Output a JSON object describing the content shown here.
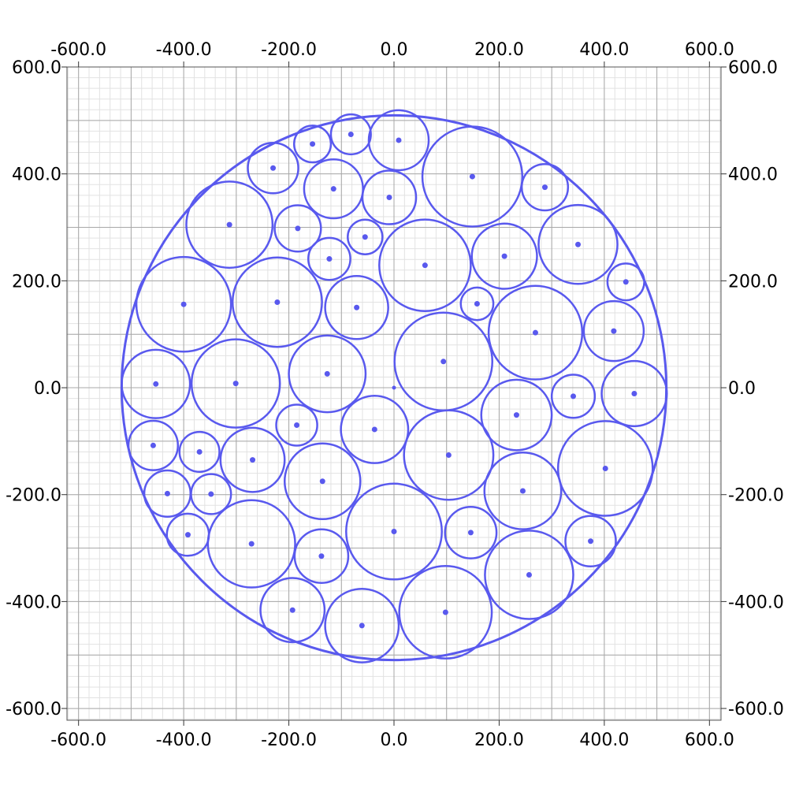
{
  "chart_data": {
    "type": "scatter",
    "title": "",
    "xlabel": "",
    "ylabel": "",
    "xlim": [
      -622,
      622
    ],
    "ylim": [
      -622,
      600
    ],
    "x_ticks": [
      -600,
      -400,
      -200,
      0,
      200,
      400,
      600
    ],
    "y_ticks": [
      600,
      400,
      200,
      0,
      -200,
      -400,
      -600
    ],
    "x_tick_labels": [
      "-600.0",
      "-400.0",
      "-200.0",
      "0.0",
      "200.0",
      "400.0",
      "600.0"
    ],
    "y_tick_labels": [
      "600.0",
      "400.0",
      "200.0",
      "0.0",
      "-200.0",
      "-400.0",
      "-600.0"
    ],
    "grid": true,
    "ticks_on_all_sides": true,
    "color": "#5959ee",
    "major_grid_color": "#a8a8a8",
    "minor_grid_color": "#e2e2e2",
    "container": {
      "x": 0,
      "y": 0,
      "r": 518
    },
    "circles": [
      {
        "x": 149,
        "y": 395,
        "r": 95
      },
      {
        "x": 94,
        "y": 49,
        "r": 93
      },
      {
        "x": 402,
        "y": -151,
        "r": 90
      },
      {
        "x": 0,
        "y": -269,
        "r": 91
      },
      {
        "x": -400,
        "y": 156,
        "r": 90
      },
      {
        "x": 269,
        "y": 103,
        "r": 89
      },
      {
        "x": -222,
        "y": 160,
        "r": 85
      },
      {
        "x": 59,
        "y": 229,
        "r": 87
      },
      {
        "x": 104,
        "y": -126,
        "r": 85
      },
      {
        "x": 98,
        "y": -420,
        "r": 88
      },
      {
        "x": -301,
        "y": 8,
        "r": 84
      },
      {
        "x": 257,
        "y": -350,
        "r": 84
      },
      {
        "x": -271,
        "y": -292,
        "r": 83
      },
      {
        "x": -313,
        "y": 305,
        "r": 82
      },
      {
        "x": 350,
        "y": 268,
        "r": 75
      },
      {
        "x": -127,
        "y": 26,
        "r": 73
      },
      {
        "x": -136,
        "y": -175,
        "r": 72
      },
      {
        "x": 245,
        "y": -193,
        "r": 73
      },
      {
        "x": -61,
        "y": -445,
        "r": 70
      },
      {
        "x": 9,
        "y": 463,
        "r": 57
      },
      {
        "x": -453,
        "y": 7,
        "r": 65
      },
      {
        "x": 233,
        "y": -51,
        "r": 67
      },
      {
        "x": 210,
        "y": 246,
        "r": 62
      },
      {
        "x": -37,
        "y": -78,
        "r": 64
      },
      {
        "x": 457,
        "y": -11,
        "r": 62
      },
      {
        "x": -269,
        "y": -135,
        "r": 61
      },
      {
        "x": -71,
        "y": 150,
        "r": 60
      },
      {
        "x": -193,
        "y": -416,
        "r": 61
      },
      {
        "x": -115,
        "y": 372,
        "r": 56
      },
      {
        "x": 418,
        "y": 106,
        "r": 57
      },
      {
        "x": 146,
        "y": -271,
        "r": 49
      },
      {
        "x": 374,
        "y": -287,
        "r": 48
      },
      {
        "x": -138,
        "y": -315,
        "r": 51
      },
      {
        "x": -9,
        "y": 356,
        "r": 51
      },
      {
        "x": -230,
        "y": 411,
        "r": 48
      },
      {
        "x": -458,
        "y": -108,
        "r": 47
      },
      {
        "x": 287,
        "y": 375,
        "r": 44
      },
      {
        "x": -431,
        "y": -198,
        "r": 44
      },
      {
        "x": -82,
        "y": 474,
        "r": 38
      },
      {
        "x": -185,
        "y": -70,
        "r": 39
      },
      {
        "x": -183,
        "y": 298,
        "r": 44
      },
      {
        "x": -123,
        "y": 241,
        "r": 40
      },
      {
        "x": -392,
        "y": -275,
        "r": 40
      },
      {
        "x": -348,
        "y": -199,
        "r": 38
      },
      {
        "x": 341,
        "y": -16,
        "r": 41
      },
      {
        "x": -155,
        "y": 456,
        "r": 35
      },
      {
        "x": -370,
        "y": -120,
        "r": 38
      },
      {
        "x": -55,
        "y": 282,
        "r": 33
      },
      {
        "x": 441,
        "y": 198,
        "r": 35
      },
      {
        "x": 158,
        "y": 157,
        "r": 31
      },
      {
        "x": 0,
        "y": 0,
        "r": 0
      }
    ]
  }
}
